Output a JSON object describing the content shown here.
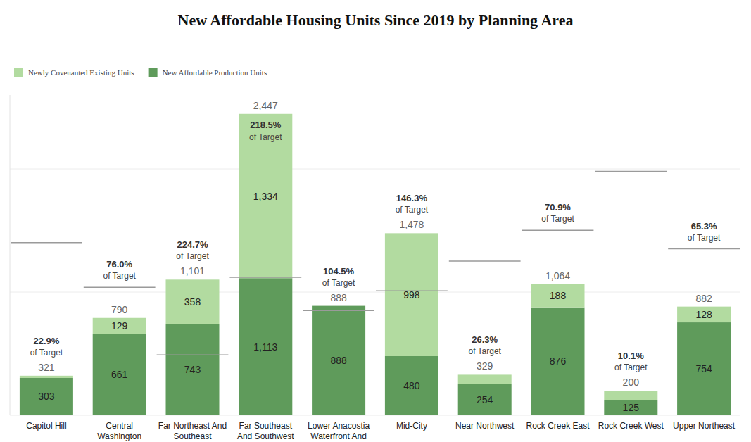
{
  "chart_data": {
    "type": "bar",
    "title": "New Affordable Housing Units Since 2019 by Planning Area",
    "categories": [
      "Capitol Hill",
      "Central Washington",
      "Far Northeast And Southeast",
      "Far Southeast And Southwest",
      "Lower Anacostia Waterfront And",
      "Mid-City",
      "Near Northwest",
      "Rock Creek East",
      "Rock Creek West",
      "Upper Northeast"
    ],
    "series": [
      {
        "name": "New Affordable Production Units",
        "color": "#5f9b5b",
        "values": [
          303,
          661,
          743,
          1113,
          888,
          480,
          254,
          876,
          125,
          754
        ],
        "value_labels": [
          "303",
          "661",
          "743",
          "1,113",
          "888",
          "480",
          "254",
          "876",
          "125",
          "754"
        ]
      },
      {
        "name": "Newly Covenanted Existing Units",
        "color": "#b2dba0",
        "values": [
          18,
          129,
          358,
          1334,
          0,
          998,
          75,
          188,
          75,
          128
        ],
        "value_labels": [
          null,
          "129",
          "358",
          "1,334",
          null,
          "998",
          null,
          "188",
          null,
          "128"
        ]
      }
    ],
    "totals": [
      321,
      790,
      1101,
      2447,
      888,
      1478,
      329,
      1064,
      200,
      882
    ],
    "total_labels": [
      "321",
      "790",
      "1,101",
      "2,447",
      "888",
      "1,478",
      "329",
      "1,064",
      "200",
      "882"
    ],
    "targets": [
      1402,
      1039,
      490,
      1120,
      850,
      1010,
      1251,
      1501,
      1980,
      1351
    ],
    "percent_of_target": [
      22.9,
      76.0,
      224.7,
      218.5,
      104.5,
      146.3,
      26.3,
      70.9,
      10.1,
      65.3
    ],
    "percent_of_target_labels": [
      "22.9%",
      "76.0%",
      "224.7%",
      "218.5%",
      "104.5%",
      "146.3%",
      "26.3%",
      "70.9%",
      "10.1%",
      "65.3%"
    ],
    "target_note": "of Target",
    "ylim": [
      0,
      2600
    ],
    "yticks": [
      0,
      1000,
      2000
    ],
    "grid": true,
    "stacked": true,
    "data_labels": true,
    "tick_labels": "x",
    "legend": "top-left"
  }
}
